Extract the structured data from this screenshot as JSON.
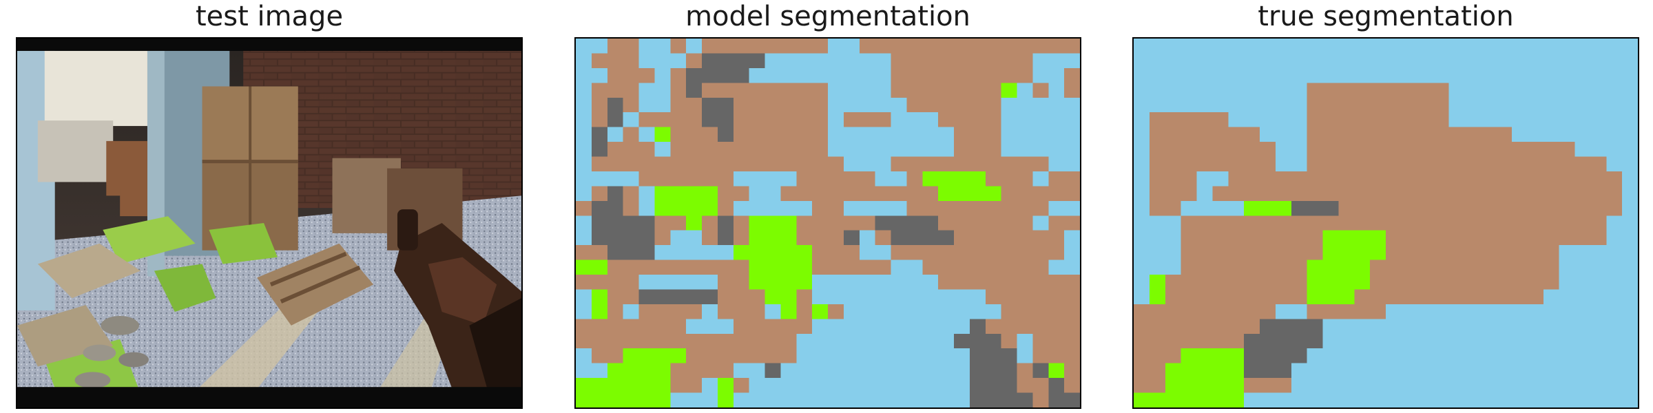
{
  "panels": [
    {
      "title": "test image"
    },
    {
      "title": "model segmentation"
    },
    {
      "title": "true segmentation"
    }
  ],
  "legend_colors": {
    "A": "#87ceeb",
    "B": "#b9896a",
    "C": "#666666",
    "D": "#7cfc00"
  },
  "model_segmentation": [
    "AABBAABABBBBBBBBAABBBBBBBBBBBBBB",
    "ABBBAAABCCCCAAAAAAAABBBBBBBBBAAA",
    "AABBBABCCCCAAAAAAAAABBBBBBBBBAAB",
    "ABBBAABCBBBBBBBBAAAABBBBBBBDABAB",
    "ABCBAABBCCBBBBBBAAAAABBBBBBAAAAA",
    "ABCABBBBCCBBBBBBABBBAAABBBBAAAAA",
    "ACABADBBBCBBBBBBAAAAAAAABBBAAAAA",
    "ACBBBABBBBBBBBBBAAAAAAAABBBAAAAA",
    "ABBBBBBBBBBBBBBBBAAABBBBBBBBBBAA",
    "AAAABBBBBBAAAABBBBBAABDDDDBBBABB",
    "ABCBADDDDBBAABBBBBBBBBBDDDDBBBBB",
    "BCCBADDDDBAAAAABBAAAABBBBBBBBBAA",
    "ACCCCBBDBCBDDDBBBBBCCCCBBBBBBABB",
    "ACCCCBAABCBDDDBBBCABCCCCBBBBBBBA",
    "BBCCCAAAAADDDDDBBBAABBBBBBBBBBBA",
    "DDBBBBBBBBBDDDDBBBBBAABBBBBBBBAA",
    "BBBBAAAAABBDDDDAAAAAAAABBBBBBBBB",
    "ADBBCCCCCBBBDDBAAAAAAAAAAABBBBBB",
    "ADBABBBBABBBADBDBAAAAAAAAAABBBBB",
    "BBBBBBBAAABBBBBAAAAAAAAAACBBBBBB",
    "BBBBBBBBBBBBBBAAAAAAAAAACCCBABBB",
    "ABBDDDDBBBBBBBAAAAAAAAAAACCCABBB",
    "AADDDDBBBBAACAAAAAAAAAAAACCCBCDB",
    "DDDDDDBBADBAAAAAAAAAAAAAACCCBBCB",
    "DDDDDDAAADAAAAAAAAAAAAAAACCCCBCC"
  ],
  "true_segmentation": [
    "AAAAAAAAAAAAAAAAAAAAAAAAAAAAAAAA",
    "AAAAAAAAAAAAAAAAAAAAAAAAAAAAAAAA",
    "AAAAAAAAAAAAAAAAAAAAAAAAAAAAAAAA",
    "AAAAAAAAAAABBBBBBBBBAAAAAAAAAAAA",
    "AAAAAAAAAAABBBBBBBBBAAAAAAAAAAAA",
    "ABBBBBAAAAABBBBBBBBBAAAAAAAAAAAA",
    "ABBBBBBBAAABBBBBBBBBBBBBAAAAAAAA",
    "ABBBBBBBBAABBBBBBBBBBBBBBBBBAAAA",
    "ABBBBBBBBAABBBBBBBBBBBBBBBBBBBAA",
    "ABBBAABBBBBBBBBBBBBBBBBBBBBBBBBA",
    "ABBBABBBBBBBBBBBBBBBBBBBBBBBBBBA",
    "ABBAAAADDDCCCBBBBBBBBBBBBBBBBBBA",
    "AAABBBBBBBBBBBBBBBBBBBBBBBBBBBAA",
    "AAABBBBBBBBBDDDDBBBBBBBBBBBBBBAA",
    "AAABBBBBBBBBDDDDBBBBBBBBBBBAAAAA",
    "AAABBBBBBBBDDDDBBBBBBBBBBBBAAAAA",
    "ADBBBBBBBBBDDDDBBBBBBBBBBBBAAAAA",
    "ADBBBBBBBBBDDDBBBBBBBBBBBBAAAAAA",
    "BBBBBBBBBAABBBBBAAAAAAAAAAAAAAAA",
    "BBBBBBBBCCCCAAAAAAAAAAAAAAAAAAAA",
    "BBBBBBBCCCCCAAAAAAAAAAAAAAAAAAAA",
    "BBBDDDDCCCCAAAAAAAAAAAAAAAAAAAAA",
    "BBDDDDDCCCAAAAAAAAAAAAAAAAAAAAAA",
    "BBDDDDDBBBAAAAAAAAAAAAAAAAAAAAAA",
    "DDDDDDDAAAAAAAAAAAAAAAAAAAAAAAAA"
  ]
}
